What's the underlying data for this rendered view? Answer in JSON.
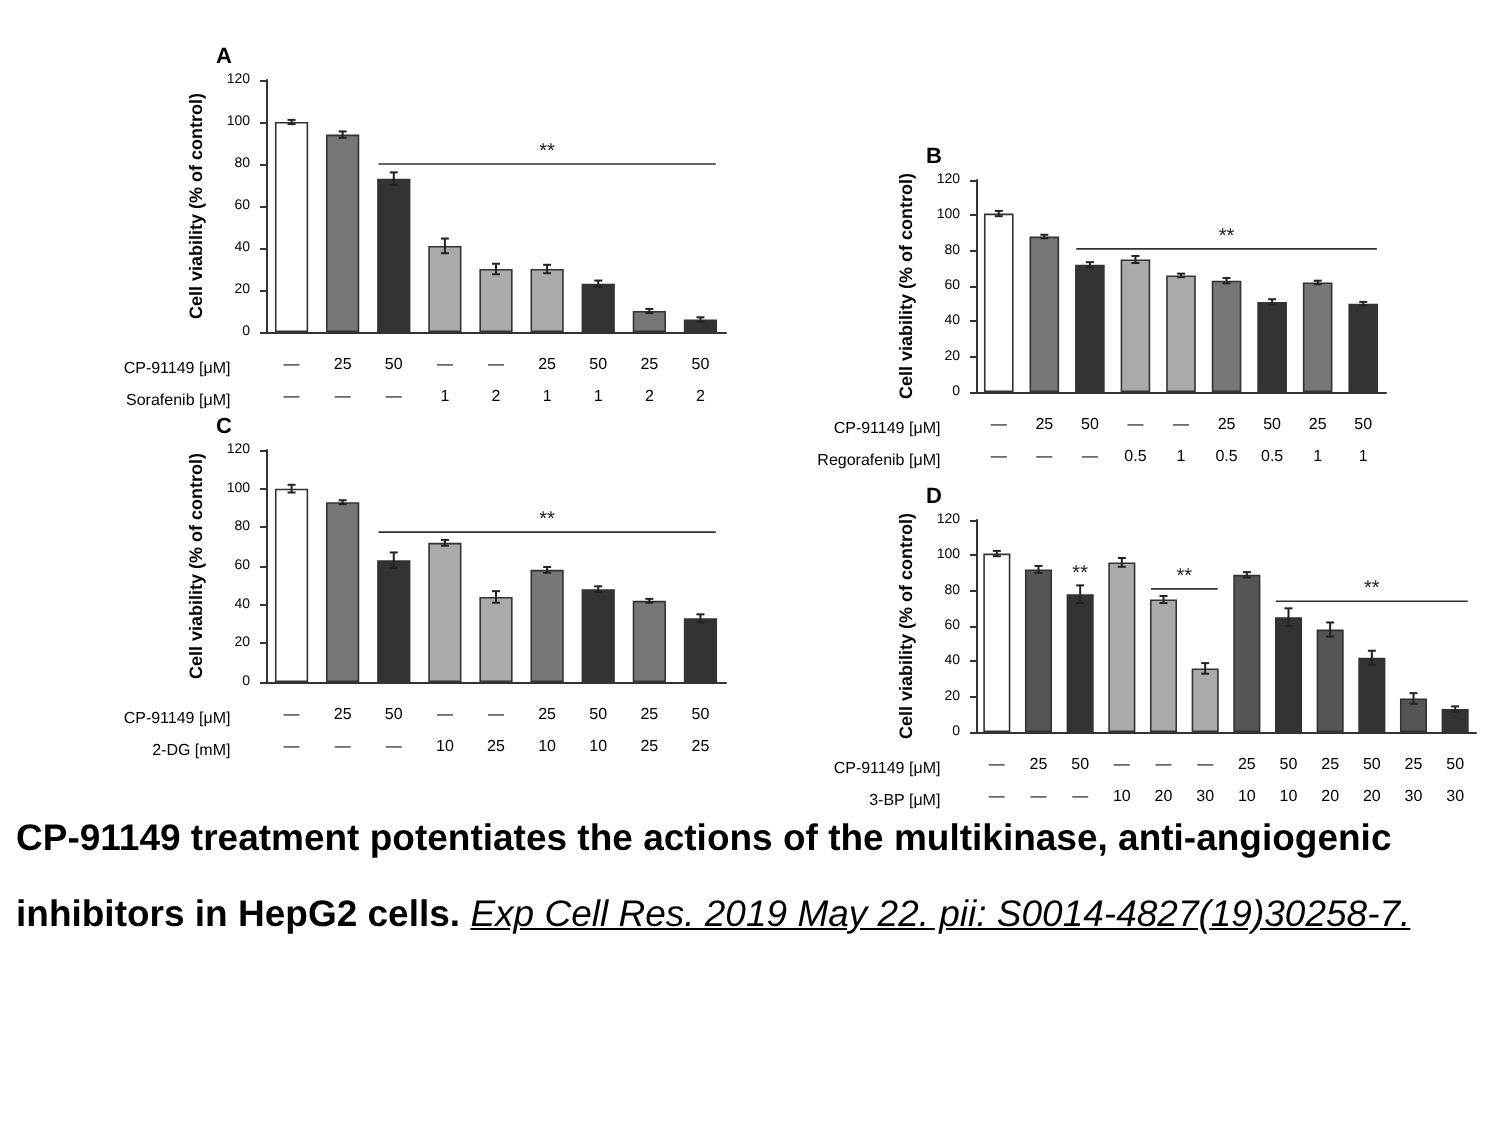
{
  "chart_data": [
    {
      "type": "bar",
      "title": "A",
      "ylabel": "Cell viability (% of control)",
      "xlabel": "CP-91149 [μM]\nSorafenib [μM]",
      "categories": [
        "—\n—",
        "25\n—",
        "50\n—",
        "—\n1",
        "—\n2",
        "25\n1",
        "50\n1",
        "25\n2",
        "50\n2"
      ],
      "values": [
        100,
        94,
        73,
        41,
        30,
        30,
        23,
        10,
        6
      ],
      "errors": [
        1,
        1.5,
        3,
        3.5,
        2.5,
        2,
        1.5,
        1,
        1
      ],
      "colors": [
        "#ffffff",
        "#777777",
        "#333333",
        "#aaaaaa",
        "#aaaaaa",
        "#aaaaaa",
        "#333333",
        "#777777",
        "#333333"
      ],
      "ylim": [
        0,
        120
      ],
      "yticks": [
        0,
        20,
        40,
        60,
        80,
        100,
        120
      ],
      "annotations": [
        "**"
      ]
    },
    {
      "type": "bar",
      "title": "B",
      "ylabel": "Cell viability (% of control)",
      "xlabel": "CP-91149 [μM]\nRegorafenib [μM]",
      "categories": [
        "—\n—",
        "25\n—",
        "50\n—",
        "—\n0.5",
        "—\n1",
        "25\n0.5",
        "50\n0.5",
        "25\n1",
        "50\n1"
      ],
      "values": [
        101,
        88,
        72,
        75,
        66,
        63,
        51,
        62,
        50
      ],
      "errors": [
        1.5,
        1,
        1.5,
        2,
        1,
        1.5,
        1.5,
        1,
        1
      ],
      "colors": [
        "#ffffff",
        "#777777",
        "#333333",
        "#aaaaaa",
        "#aaaaaa",
        "#777777",
        "#333333",
        "#777777",
        "#333333"
      ],
      "ylim": [
        0,
        120
      ],
      "yticks": [
        0,
        20,
        40,
        60,
        80,
        100,
        120
      ],
      "annotations": [
        "**"
      ]
    },
    {
      "type": "bar",
      "title": "C",
      "ylabel": "Cell viability (% of control)",
      "xlabel": "CP-91149 [μM]\n2-DG [mM]",
      "categories": [
        "—\n—",
        "25\n—",
        "50\n—",
        "—\n10",
        "—\n25",
        "25\n10",
        "50\n10",
        "25\n25",
        "50\n25"
      ],
      "values": [
        100,
        93,
        63,
        72,
        44,
        58,
        48,
        42,
        33
      ],
      "errors": [
        2,
        1,
        4,
        1.5,
        3,
        1.5,
        1.5,
        1,
        2
      ],
      "colors": [
        "#ffffff",
        "#777777",
        "#333333",
        "#aaaaaa",
        "#aaaaaa",
        "#777777",
        "#333333",
        "#777777",
        "#333333"
      ],
      "ylim": [
        0,
        120
      ],
      "yticks": [
        0,
        20,
        40,
        60,
        80,
        100,
        120
      ],
      "annotations": [
        "**"
      ]
    },
    {
      "type": "bar",
      "title": "D",
      "ylabel": "Cell viability (% of control)",
      "xlabel": "CP-91149 [μM]\n3-BP [μM]",
      "categories": [
        "—\n—",
        "25\n—",
        "50\n—",
        "—\n10",
        "—\n20",
        "—\n30",
        "25\n10",
        "50\n10",
        "25\n20",
        "50\n20",
        "25\n30",
        "50\n30"
      ],
      "values": [
        101,
        92,
        78,
        96,
        75,
        36,
        89,
        65,
        58,
        42,
        19,
        13
      ],
      "errors": [
        1.5,
        2,
        5,
        2.5,
        2,
        3,
        1.5,
        5,
        4,
        4,
        3,
        1.5
      ],
      "colors": [
        "#ffffff",
        "#555555",
        "#333333",
        "#aaaaaa",
        "#aaaaaa",
        "#aaaaaa",
        "#555555",
        "#333333",
        "#555555",
        "#333333",
        "#555555",
        "#333333"
      ],
      "ylim": [
        0,
        120
      ],
      "yticks": [
        0,
        20,
        40,
        60,
        80,
        100,
        120
      ],
      "annotations": [
        "**",
        "**",
        "**",
        "CP-91149 treatment potentiates the actions of the multikinase, anti-angiogenic inhibitors in HepG2 cells.",
        "Exp Cell Res. 2019 May 22. pii: S0014-4827(19)30258-7."
      ]
    }
  ]
}
